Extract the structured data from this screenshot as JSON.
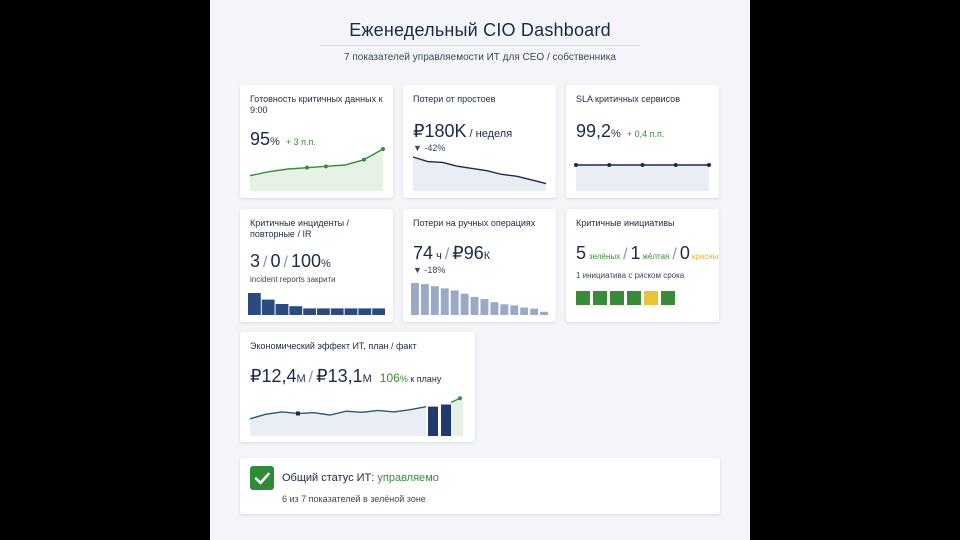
{
  "header": {
    "title": "Еженедельный CIO Dashboard",
    "subtitle": "7 показателей управляемости ИТ для CEO / собственника"
  },
  "cards": {
    "data_ready": {
      "label": "Готовность критичных данных к 9:00",
      "value": "95",
      "unit": "%",
      "delta": "+ 3 п.п."
    },
    "downtime": {
      "label": "Потери от простоев",
      "value": "₽180K",
      "unit": " / неделя",
      "delta": "▼ -42%"
    },
    "sla": {
      "label": "SLA критичных сервисов",
      "value": "99,2",
      "unit": "%",
      "delta": "+ 0,4 п.п."
    },
    "incidents": {
      "label": "Критичные инциденты / повторные / IR",
      "v1": "3",
      "v2": "0",
      "v3": "100",
      "unit": "%",
      "note": "incident reports закрити"
    },
    "manual_ops": {
      "label": "Потери на ручных операциях",
      "v1": "74",
      "unit1": " ч",
      "v2": "₽96",
      "unit2": "К",
      "delta": "▼ -18%"
    },
    "initiatives": {
      "label": "Критичные инициативы",
      "green_count": "5",
      "green_label": "зелёных",
      "yellow_count": "1",
      "yellow_label": "жёлтая",
      "red_count": "0",
      "red_label": "красных",
      "note": "1 инициатива с риском срока",
      "blocks": [
        "green",
        "green",
        "green",
        "green",
        "yellow",
        "green"
      ],
      "colors": {
        "green": "#3a8a3a",
        "yellow": "#e8c43a",
        "red": "#c84a3a"
      }
    },
    "economic": {
      "label": "Экономический эффект ИТ, план / факт",
      "plan": "₽12,4",
      "plan_unit": "М",
      "fact": "₽13,1",
      "fact_unit": "М",
      "pct": "106",
      "pct_unit": "%",
      "pct_suffix": " к плану"
    }
  },
  "status": {
    "prefix": "Общий статус ИТ: ",
    "value": "управляемо",
    "sub": "6 из 7 показателей в зелёной зоне"
  },
  "chart_data": [
    {
      "type": "area",
      "name": "data_ready_trend",
      "y": [
        80,
        83,
        85,
        86,
        87,
        88,
        92,
        100
      ],
      "markers_at": [
        3,
        4,
        6,
        7
      ],
      "ylim": [
        70,
        100
      ]
    },
    {
      "type": "line",
      "name": "downtime_trend",
      "y": [
        100,
        90,
        88,
        80,
        75,
        70,
        62,
        58,
        50,
        42
      ],
      "ylim": [
        30,
        100
      ]
    },
    {
      "type": "line",
      "name": "sla_trend",
      "y": [
        99.2,
        99.2,
        99.2,
        99.2,
        99.2
      ],
      "markers_at": [
        0,
        1,
        2,
        3,
        4
      ],
      "ylim": [
        98,
        100
      ]
    },
    {
      "type": "bar",
      "name": "incidents_trend",
      "values": [
        10,
        7,
        5,
        4,
        3,
        3,
        3,
        3,
        3,
        3
      ],
      "ylim": [
        0,
        10
      ]
    },
    {
      "type": "bar",
      "name": "manual_ops_trend",
      "values": [
        30,
        29,
        27,
        25,
        23,
        20,
        17,
        15,
        12,
        10,
        9,
        7,
        6,
        3
      ],
      "ylim": [
        0,
        30
      ]
    },
    {
      "type": "line",
      "name": "economic_plan_fact",
      "series": [
        {
          "name": "факт",
          "y": [
            40,
            52,
            58,
            54,
            56,
            50,
            60,
            57,
            62,
            58,
            64,
            72
          ]
        }
      ],
      "bars": [
        {
          "name": "план",
          "value": 70
        },
        {
          "name": "факт",
          "value": 75
        }
      ],
      "ylim": [
        0,
        100
      ]
    }
  ]
}
